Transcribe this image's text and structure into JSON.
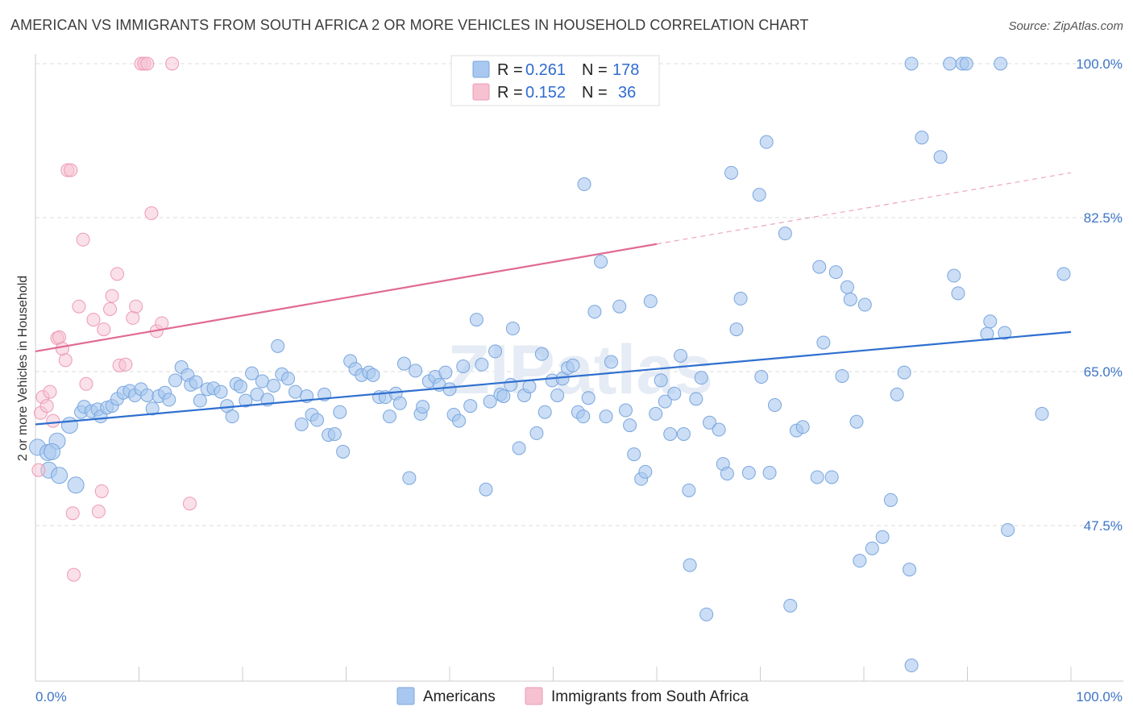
{
  "title": "AMERICAN VS IMMIGRANTS FROM SOUTH AFRICA 2 OR MORE VEHICLES IN HOUSEHOLD CORRELATION CHART",
  "source": "Source: ZipAtlas.com",
  "watermark": "ZIPatlas",
  "colors": {
    "blue_fill": "#a9c8ef",
    "blue_stroke": "#7aa6df",
    "blue_line": "#2f6fcf",
    "pink_fill": "#f6c1d1",
    "pink_stroke": "#ee9ab5",
    "pink_line": "#e06a92",
    "tick_text": "#3d74c7",
    "grid": "#dddddd"
  },
  "legend": {
    "rows": [
      {
        "r_label": "R =",
        "r_value": "0.261",
        "n_label": "N =",
        "n_value": "178"
      },
      {
        "r_label": "R =",
        "r_value": "0.152",
        "n_label": "N =",
        "n_value": "36"
      }
    ]
  },
  "chart_data": {
    "type": "scatter",
    "title": "AMERICAN VS IMMIGRANTS FROM SOUTH AFRICA 2 OR MORE VEHICLES IN HOUSEHOLD CORRELATION CHART",
    "xlabel": "",
    "ylabel": "2 or more Vehicles in Household",
    "xlim": [
      0,
      100
    ],
    "ylim": [
      31.6,
      101.8
    ],
    "x_tick_labels": [
      "0.0%",
      "100.0%"
    ],
    "y_ticks": [
      47.5,
      65.0,
      82.5,
      100.0
    ],
    "y_tick_labels": [
      "47.5%",
      "65.0%",
      "82.5%",
      "100.0%"
    ],
    "grid": "horizontal dashed",
    "legend_position": "top-center",
    "series": [
      {
        "name": "Americans",
        "r": 0.261,
        "n": 178,
        "trend": {
          "x": [
            0,
            100
          ],
          "y": [
            59.0,
            69.5
          ]
        },
        "points": [
          [
            0.2,
            56.4
          ],
          [
            1.3,
            53.8
          ],
          [
            1.2,
            55.8
          ],
          [
            2.1,
            57.1
          ],
          [
            1.6,
            55.9
          ],
          [
            2.3,
            53.2
          ],
          [
            3.3,
            58.9
          ],
          [
            3.9,
            52.1
          ],
          [
            4.4,
            60.4
          ],
          [
            4.7,
            61.0
          ],
          [
            5.4,
            60.5
          ],
          [
            6.0,
            60.7
          ],
          [
            6.3,
            59.9
          ],
          [
            6.9,
            60.9
          ],
          [
            7.4,
            61.1
          ],
          [
            7.9,
            61.9
          ],
          [
            8.5,
            62.6
          ],
          [
            9.1,
            62.8
          ],
          [
            9.6,
            62.3
          ],
          [
            10.2,
            63.0
          ],
          [
            10.8,
            62.3
          ],
          [
            11.3,
            60.8
          ],
          [
            11.9,
            62.2
          ],
          [
            12.5,
            62.6
          ],
          [
            12.9,
            61.8
          ],
          [
            13.5,
            64.0
          ],
          [
            14.1,
            65.5
          ],
          [
            14.7,
            64.6
          ],
          [
            15.0,
            63.5
          ],
          [
            15.5,
            63.8
          ],
          [
            15.9,
            61.7
          ],
          [
            16.6,
            63.0
          ],
          [
            17.2,
            63.1
          ],
          [
            17.9,
            62.7
          ],
          [
            18.5,
            61.1
          ],
          [
            19.0,
            59.9
          ],
          [
            19.4,
            63.6
          ],
          [
            19.8,
            63.3
          ],
          [
            20.3,
            61.7
          ],
          [
            20.9,
            64.8
          ],
          [
            21.4,
            62.4
          ],
          [
            21.9,
            63.9
          ],
          [
            22.4,
            61.8
          ],
          [
            23.0,
            63.4
          ],
          [
            23.4,
            67.9
          ],
          [
            23.8,
            64.7
          ],
          [
            24.4,
            64.2
          ],
          [
            25.1,
            62.7
          ],
          [
            25.7,
            59.0
          ],
          [
            26.2,
            62.2
          ],
          [
            26.7,
            60.1
          ],
          [
            27.2,
            59.5
          ],
          [
            27.9,
            62.4
          ],
          [
            28.3,
            57.8
          ],
          [
            28.9,
            57.9
          ],
          [
            29.4,
            60.4
          ],
          [
            29.7,
            55.9
          ],
          [
            30.4,
            66.2
          ],
          [
            30.9,
            65.3
          ],
          [
            31.5,
            64.6
          ],
          [
            32.2,
            64.9
          ],
          [
            32.6,
            64.6
          ],
          [
            33.2,
            62.1
          ],
          [
            33.8,
            62.1
          ],
          [
            34.2,
            59.9
          ],
          [
            34.8,
            62.5
          ],
          [
            35.2,
            61.4
          ],
          [
            35.6,
            65.9
          ],
          [
            36.1,
            52.9
          ],
          [
            36.7,
            65.1
          ],
          [
            37.2,
            60.2
          ],
          [
            37.4,
            61.0
          ],
          [
            38.0,
            63.9
          ],
          [
            38.6,
            64.4
          ],
          [
            39.0,
            63.5
          ],
          [
            39.6,
            64.9
          ],
          [
            40.0,
            63.0
          ],
          [
            40.4,
            60.1
          ],
          [
            40.9,
            59.4
          ],
          [
            41.3,
            65.6
          ],
          [
            42.0,
            61.1
          ],
          [
            42.6,
            70.9
          ],
          [
            43.1,
            65.8
          ],
          [
            43.5,
            51.6
          ],
          [
            43.9,
            61.6
          ],
          [
            44.4,
            67.3
          ],
          [
            44.9,
            62.4
          ],
          [
            45.2,
            62.2
          ],
          [
            45.9,
            63.5
          ],
          [
            46.1,
            69.9
          ],
          [
            46.7,
            56.3
          ],
          [
            47.2,
            62.3
          ],
          [
            47.7,
            63.3
          ],
          [
            48.4,
            58.0
          ],
          [
            48.9,
            67.0
          ],
          [
            49.2,
            60.4
          ],
          [
            49.9,
            64.0
          ],
          [
            50.4,
            62.3
          ],
          [
            50.9,
            64.2
          ],
          [
            51.4,
            65.4
          ],
          [
            51.9,
            65.7
          ],
          [
            52.4,
            60.4
          ],
          [
            52.9,
            59.9
          ],
          [
            53.0,
            86.3
          ],
          [
            53.4,
            62.0
          ],
          [
            54.0,
            71.8
          ],
          [
            54.6,
            77.5
          ],
          [
            55.1,
            59.9
          ],
          [
            55.6,
            66.1
          ],
          [
            56.4,
            72.4
          ],
          [
            57.0,
            60.6
          ],
          [
            57.4,
            58.9
          ],
          [
            57.8,
            55.6
          ],
          [
            58.5,
            52.8
          ],
          [
            58.9,
            53.6
          ],
          [
            59.4,
            73.0
          ],
          [
            59.9,
            60.2
          ],
          [
            60.4,
            64.0
          ],
          [
            60.8,
            61.6
          ],
          [
            61.3,
            57.9
          ],
          [
            61.7,
            62.5
          ],
          [
            62.3,
            66.8
          ],
          [
            62.6,
            57.9
          ],
          [
            63.1,
            51.5
          ],
          [
            63.2,
            43.0
          ],
          [
            63.8,
            61.9
          ],
          [
            64.3,
            64.3
          ],
          [
            64.8,
            37.4
          ],
          [
            65.1,
            59.2
          ],
          [
            66.0,
            58.4
          ],
          [
            66.4,
            54.5
          ],
          [
            66.8,
            53.4
          ],
          [
            67.2,
            87.6
          ],
          [
            67.7,
            69.8
          ],
          [
            68.1,
            73.3
          ],
          [
            68.9,
            53.5
          ],
          [
            69.9,
            85.1
          ],
          [
            70.1,
            64.4
          ],
          [
            70.6,
            91.1
          ],
          [
            70.9,
            53.5
          ],
          [
            71.4,
            61.2
          ],
          [
            72.4,
            80.7
          ],
          [
            72.9,
            38.4
          ],
          [
            73.5,
            58.3
          ],
          [
            74.1,
            58.7
          ],
          [
            75.5,
            53.0
          ],
          [
            75.7,
            76.9
          ],
          [
            76.1,
            68.3
          ],
          [
            76.9,
            53.0
          ],
          [
            77.3,
            76.3
          ],
          [
            77.9,
            64.5
          ],
          [
            78.4,
            74.6
          ],
          [
            78.7,
            73.2
          ],
          [
            79.3,
            59.3
          ],
          [
            79.6,
            43.5
          ],
          [
            80.1,
            72.6
          ],
          [
            80.8,
            44.9
          ],
          [
            81.8,
            46.2
          ],
          [
            82.6,
            50.4
          ],
          [
            83.2,
            62.4
          ],
          [
            83.9,
            64.9
          ],
          [
            84.4,
            42.5
          ],
          [
            84.6,
            100.0
          ],
          [
            84.6,
            31.6
          ],
          [
            85.6,
            91.6
          ],
          [
            87.4,
            89.4
          ],
          [
            88.3,
            100.0
          ],
          [
            88.7,
            75.9
          ],
          [
            89.1,
            73.9
          ],
          [
            89.5,
            100.0
          ],
          [
            89.9,
            100.0
          ],
          [
            91.9,
            69.3
          ],
          [
            92.2,
            70.7
          ],
          [
            93.2,
            100.0
          ],
          [
            93.6,
            69.4
          ],
          [
            93.9,
            47.0
          ],
          [
            97.2,
            60.2
          ],
          [
            99.3,
            76.1
          ]
        ]
      },
      {
        "name": "Immigrants from South Africa",
        "r": 0.152,
        "n": 36,
        "trend": {
          "x": [
            0,
            60
          ],
          "y": [
            67.3,
            79.5
          ]
        },
        "trend_extension": {
          "x": [
            60,
            100
          ],
          "y": [
            79.5,
            87.6
          ]
        },
        "points": [
          [
            0.3,
            53.8
          ],
          [
            0.5,
            60.3
          ],
          [
            0.7,
            62.1
          ],
          [
            1.1,
            61.1
          ],
          [
            1.4,
            62.7
          ],
          [
            1.7,
            59.4
          ],
          [
            2.1,
            68.8
          ],
          [
            2.3,
            68.9
          ],
          [
            2.6,
            67.6
          ],
          [
            2.9,
            66.3
          ],
          [
            3.1,
            87.9
          ],
          [
            3.4,
            87.9
          ],
          [
            3.6,
            48.9
          ],
          [
            3.7,
            41.9
          ],
          [
            4.2,
            72.4
          ],
          [
            4.6,
            80.0
          ],
          [
            4.9,
            63.6
          ],
          [
            5.6,
            70.9
          ],
          [
            6.1,
            49.1
          ],
          [
            6.4,
            51.4
          ],
          [
            6.6,
            69.8
          ],
          [
            7.2,
            72.1
          ],
          [
            7.4,
            73.6
          ],
          [
            7.9,
            76.1
          ],
          [
            8.1,
            65.7
          ],
          [
            8.7,
            65.8
          ],
          [
            9.4,
            71.1
          ],
          [
            9.7,
            72.4
          ],
          [
            10.2,
            100.0
          ],
          [
            10.5,
            100.0
          ],
          [
            10.8,
            100.0
          ],
          [
            11.2,
            83.0
          ],
          [
            11.7,
            69.6
          ],
          [
            12.2,
            70.5
          ],
          [
            13.2,
            100.0
          ],
          [
            14.9,
            50.0
          ]
        ]
      }
    ]
  }
}
